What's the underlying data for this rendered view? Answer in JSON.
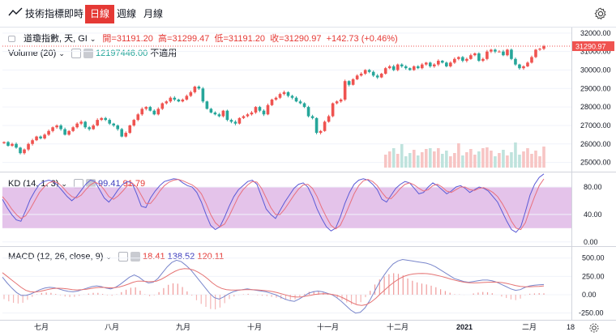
{
  "toolbar": {
    "indicators_label": "技術指標",
    "intervals": [
      "即時",
      "日線",
      "週線",
      "月線"
    ],
    "active_interval": "日線",
    "settings_icon": "gear-icon"
  },
  "header": {
    "symbol": "道瓊指數, 天, GI",
    "open_label": "開",
    "open": "31191.20",
    "high_label": "高",
    "high": "31299.47",
    "low_label": "低",
    "low": "31191.20",
    "close_label": "收",
    "close": "31290.97",
    "change": "+142.73 (+0.46%)",
    "last_price_tag": "31290.97"
  },
  "volume_legend": {
    "name": "Volume (20)",
    "value": "12197446.00",
    "na": "不適用"
  },
  "kd_legend": {
    "name": "KD (14, 1, 3)",
    "k": "99.41",
    "d": "91.79"
  },
  "macd_legend": {
    "name": "MACD (12, 26, close, 9)",
    "hist": "18.41",
    "macd": "138.52",
    "signal": "120.11"
  },
  "colors": {
    "up": "#ef5350",
    "down": "#26a69a",
    "k_line": "#5b5bd6",
    "d_line": "#e8707e",
    "kd_band": "#dfb8e6",
    "accent": "#e53935"
  },
  "chart_data": [
    {
      "type": "candlestick",
      "title": "道瓊指數",
      "x": [
        "七月",
        "八月",
        "九月",
        "十月",
        "十一月",
        "十二月",
        "2021",
        "二月",
        "18"
      ],
      "ylim": [
        24500,
        32300
      ],
      "yticks": [
        25000,
        26000,
        27000,
        28000,
        29000,
        30000,
        31000,
        32000
      ],
      "ytick_labels": [
        "25000.00",
        "26000.00",
        "27000.00",
        "28000.00",
        "29000.00",
        "30000.00",
        "31000.00",
        "32000.00"
      ],
      "closes": [
        26100,
        25900,
        26000,
        25800,
        25500,
        25700,
        26000,
        26200,
        26400,
        26300,
        26500,
        26700,
        26900,
        27000,
        26800,
        26500,
        26700,
        26900,
        27100,
        27200,
        26900,
        26800,
        27000,
        27300,
        27400,
        27300,
        27100,
        27000,
        26800,
        26400,
        26600,
        27000,
        27300,
        27600,
        27900,
        28000,
        27800,
        27600,
        27900,
        28200,
        28300,
        28500,
        28400,
        28300,
        28400,
        28600,
        28800,
        29100,
        29000,
        28300,
        27900,
        27700,
        27600,
        27500,
        27800,
        27300,
        27200,
        27100,
        27400,
        27500,
        27600,
        27700,
        28000,
        27800,
        27600,
        28100,
        28400,
        28500,
        28700,
        28800,
        28600,
        28500,
        28300,
        28200,
        28000,
        27500,
        27400,
        26600,
        26700,
        27200,
        27500,
        28200,
        28300,
        28400,
        29400,
        29200,
        29500,
        29700,
        29800,
        30000,
        29900,
        29700,
        29600,
        29800,
        30100,
        30200,
        30000,
        30300,
        30200,
        30100,
        30000,
        30200,
        30100,
        30300,
        30400,
        30200,
        30300,
        30500,
        30400,
        30200,
        30400,
        30600,
        30700,
        30500,
        30600,
        30800,
        30900,
        30500,
        30600,
        31000,
        31100,
        31000,
        31000,
        30800,
        31100,
        30600,
        30300,
        30100,
        30200,
        30400,
        30700,
        31100,
        31150,
        31290
      ],
      "volume_bars_count": 40
    },
    {
      "type": "line",
      "title": "KD (14, 1, 3)",
      "ylim": [
        -5,
        100
      ],
      "yticks": [
        0,
        40,
        80
      ],
      "ytick_labels": [
        "0.00",
        "40.00",
        "80.00"
      ],
      "band": [
        20,
        80
      ],
      "series": [
        {
          "name": "K",
          "values": [
            62,
            50,
            40,
            32,
            30,
            45,
            62,
            74,
            84,
            88,
            90,
            88,
            82,
            74,
            66,
            60,
            66,
            75,
            84,
            90,
            88,
            76,
            64,
            58,
            66,
            76,
            84,
            88,
            86,
            70,
            52,
            50,
            64,
            74,
            82,
            88,
            90,
            92,
            91,
            86,
            82,
            80,
            72,
            58,
            40,
            24,
            18,
            22,
            36,
            52,
            66,
            76,
            82,
            88,
            90,
            84,
            66,
            48,
            40,
            34,
            46,
            58,
            68,
            78,
            84,
            86,
            80,
            66,
            48,
            34,
            22,
            16,
            20,
            36,
            56,
            72,
            84,
            90,
            92,
            90,
            84,
            76,
            62,
            58,
            68,
            78,
            84,
            88,
            86,
            78,
            70,
            72,
            80,
            86,
            82,
            76,
            70,
            74,
            80,
            82,
            78,
            72,
            76,
            80,
            78,
            74,
            66,
            58,
            44,
            30,
            18,
            14,
            22,
            44,
            68,
            84,
            94,
            99
          ]
        },
        {
          "name": "D",
          "values": [
            66,
            58,
            48,
            40,
            34,
            38,
            48,
            60,
            72,
            80,
            86,
            88,
            86,
            80,
            72,
            66,
            64,
            68,
            76,
            83,
            87,
            84,
            76,
            66,
            62,
            67,
            74,
            82,
            86,
            80,
            68,
            56,
            56,
            64,
            74,
            82,
            87,
            90,
            91,
            89,
            86,
            83,
            78,
            70,
            56,
            40,
            28,
            22,
            26,
            38,
            52,
            66,
            76,
            83,
            88,
            87,
            78,
            64,
            50,
            40,
            40,
            48,
            58,
            68,
            77,
            83,
            84,
            78,
            66,
            50,
            36,
            24,
            19,
            24,
            38,
            54,
            70,
            82,
            89,
            91,
            88,
            82,
            72,
            64,
            63,
            70,
            78,
            84,
            86,
            83,
            78,
            74,
            76,
            82,
            84,
            80,
            74,
            72,
            76,
            80,
            80,
            76,
            75,
            78,
            79,
            76,
            72,
            66,
            56,
            44,
            30,
            20,
            18,
            28,
            48,
            66,
            82,
            91.8
          ]
        }
      ]
    },
    {
      "type": "line",
      "title": "MACD (12, 26, close, 9)",
      "ylim": [
        -320,
        640
      ],
      "yticks": [
        -250,
        0,
        250,
        500
      ],
      "ytick_labels": [
        "-250.00",
        "0.00",
        "250.00",
        "500.00"
      ],
      "series": [
        {
          "name": "MACD",
          "values": [
            240,
            160,
            90,
            30,
            -10,
            -10,
            10,
            40,
            70,
            90,
            100,
            95,
            80,
            60,
            45,
            40,
            50,
            70,
            90,
            110,
            120,
            110,
            90,
            80,
            100,
            140,
            190,
            240,
            270,
            240,
            190,
            160,
            170,
            220,
            300,
            380,
            440,
            470,
            450,
            400,
            340,
            260,
            180,
            100,
            20,
            -40,
            -60,
            -30,
            10,
            40,
            60,
            70,
            80,
            70,
            60,
            50,
            40,
            20,
            0,
            -30,
            -60,
            -80,
            -90,
            -60,
            -20,
            20,
            40,
            50,
            40,
            20,
            0,
            -40,
            -90,
            -150,
            -210,
            -250,
            -240,
            -180,
            -80,
            40,
            160,
            260,
            350,
            420,
            460,
            480,
            470,
            460,
            450,
            440,
            430,
            410,
            380,
            340,
            300,
            260,
            220,
            200,
            180,
            170,
            180,
            190,
            200,
            200,
            190,
            170,
            140,
            110,
            80,
            60,
            70,
            100,
            120,
            130,
            135,
            138.5
          ]
        },
        {
          "name": "Signal",
          "values": [
            300,
            250,
            200,
            150,
            100,
            60,
            40,
            35,
            45,
            60,
            75,
            85,
            88,
            85,
            78,
            70,
            65,
            68,
            75,
            85,
            95,
            100,
            98,
            94,
            95,
            105,
            122,
            145,
            170,
            185,
            185,
            180,
            178,
            185,
            210,
            245,
            285,
            320,
            345,
            355,
            352,
            335,
            305,
            265,
            215,
            160,
            115,
            85,
            70,
            64,
            63,
            65,
            68,
            69,
            67,
            64,
            59,
            51,
            41,
            27,
            9,
            -9,
            -25,
            -32,
            -30,
            -20,
            -8,
            4,
            11,
            13,
            10,
            0,
            -18,
            -44,
            -77,
            -112,
            -138,
            -146,
            -133,
            -99,
            -48,
            12,
            71,
            127,
            176,
            217,
            249,
            270,
            282,
            288,
            290,
            287,
            278,
            265,
            250,
            233,
            214,
            196,
            182,
            170,
            163,
            161,
            163,
            167,
            170,
            172,
            171,
            165,
            155,
            140,
            124,
            113,
            107,
            107,
            111,
            114,
            120.1
          ]
        }
      ],
      "histogram_values": [
        -60,
        -90,
        -110,
        -120,
        -110,
        -70,
        -30,
        5,
        25,
        30,
        25,
        10,
        -8,
        -25,
        -33,
        -30,
        -15,
        2,
        15,
        25,
        25,
        10,
        -8,
        -14,
        5,
        35,
        68,
        95,
        100,
        55,
        5,
        -20,
        -8,
        35,
        90,
        135,
        155,
        150,
        105,
        45,
        -12,
        -75,
        -125,
        -165,
        -195,
        -200,
        -175,
        -115,
        -60,
        -24,
        -3,
        5,
        12,
        1,
        -7,
        -14,
        -19,
        -31,
        -41,
        -57,
        -69,
        -71,
        -65,
        -28,
        10,
        40,
        48,
        46,
        29,
        7,
        -10,
        -40,
        -72,
        -106,
        -133,
        -138,
        -102,
        -34,
        53,
        139,
        208,
        248,
        279,
        293,
        284,
        263,
        221,
        190,
        168,
        152,
        140,
        123,
        102,
        75,
        50,
        27,
        6,
        4,
        -2,
        0,
        17,
        29,
        37,
        33,
        20,
        -1,
        -25,
        -45,
        -64,
        -74,
        -53,
        -7,
        13,
        17,
        21,
        18.4
      ]
    }
  ]
}
